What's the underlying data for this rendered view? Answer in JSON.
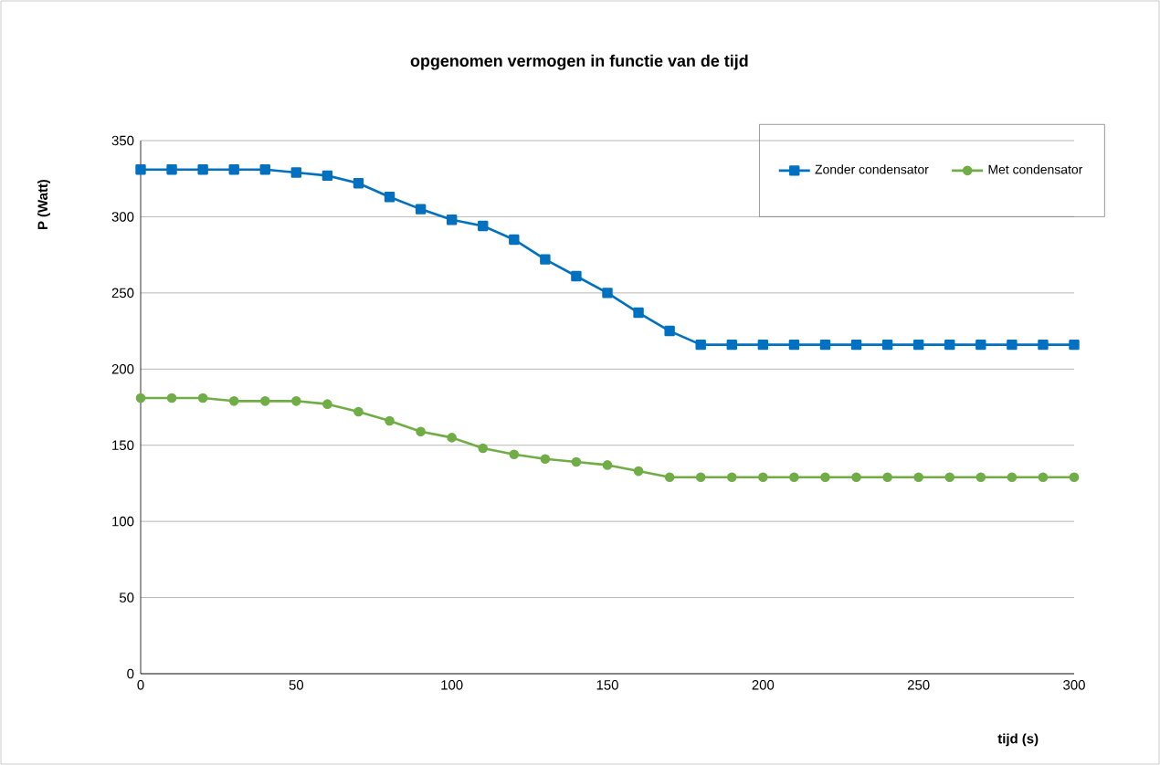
{
  "chart_data": {
    "type": "line",
    "title": "opgenomen vermogen in functie van de tijd",
    "xlabel": "tijd (s)",
    "ylabel": "P (Watt)",
    "x": [
      0,
      10,
      20,
      30,
      40,
      50,
      60,
      70,
      80,
      90,
      100,
      110,
      120,
      130,
      140,
      150,
      160,
      170,
      180,
      190,
      200,
      210,
      220,
      230,
      240,
      250,
      260,
      270,
      280,
      290,
      300
    ],
    "series": [
      {
        "name": "Zonder condensator",
        "color": "#0070c0",
        "marker": "square",
        "values": [
          331,
          331,
          331,
          331,
          331,
          329,
          327,
          322,
          313,
          305,
          298,
          294,
          285,
          272,
          261,
          250,
          237,
          225,
          216,
          216,
          216,
          216,
          216,
          216,
          216,
          216,
          216,
          216,
          216,
          216,
          216
        ]
      },
      {
        "name": "Met condensator",
        "color": "#70ad47",
        "marker": "circle",
        "values": [
          181,
          181,
          181,
          179,
          179,
          179,
          177,
          172,
          166,
          159,
          155,
          148,
          144,
          141,
          139,
          137,
          133,
          129,
          129,
          129,
          129,
          129,
          129,
          129,
          129,
          129,
          129,
          129,
          129,
          129,
          129
        ]
      }
    ],
    "xlim": [
      0,
      300
    ],
    "xticks": [
      0,
      50,
      100,
      150,
      200,
      250,
      300
    ],
    "ylim": [
      0,
      350
    ],
    "yticks": [
      0,
      50,
      100,
      150,
      200,
      250,
      300,
      350
    ],
    "grid": "y",
    "legend": "top right",
    "line_style": "solid"
  }
}
